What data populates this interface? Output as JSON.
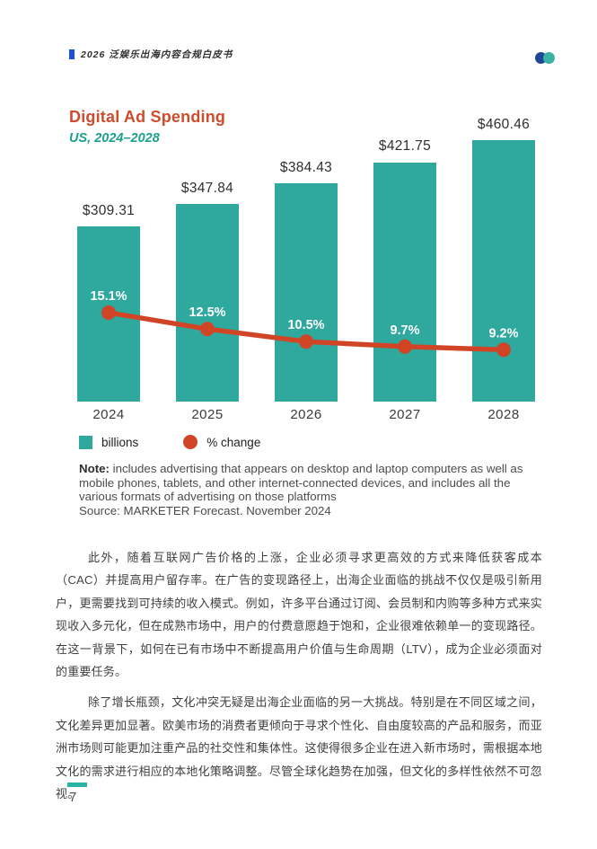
{
  "header": {
    "doc_title": "2026 泛娱乐出海内容合规白皮书"
  },
  "chart": {
    "title": "Digital Ad Spending",
    "subtitle": "US, 2024–2028",
    "legend": [
      {
        "label": "billions",
        "marker": "square",
        "color": "#2fa99e"
      },
      {
        "label": "% change",
        "marker": "circle",
        "color": "#d14527"
      }
    ],
    "note_label": "Note:",
    "note_body": " includes advertising that appears on desktop and laptop computers as well as mobile phones, tablets, and other internet-connected devices, and includes all the various formats of advertising on those platforms",
    "source": "Source: MARKETER Forecast. November 2024"
  },
  "chart_data": {
    "type": "bar",
    "combo": "bar+line",
    "title": "Digital Ad Spending",
    "subtitle": "US, 2024–2028",
    "categories": [
      "2024",
      "2025",
      "2026",
      "2027",
      "2028"
    ],
    "series": [
      {
        "name": "billions",
        "type": "bar",
        "values": [
          309.31,
          347.84,
          384.43,
          421.75,
          460.46
        ],
        "labels": [
          "$309.31",
          "$347.84",
          "$384.43",
          "$421.75",
          "$460.46"
        ],
        "color": "#2fa99e"
      },
      {
        "name": "% change",
        "type": "line",
        "values": [
          15.1,
          12.5,
          10.5,
          9.7,
          9.2
        ],
        "labels": [
          "15.1%",
          "12.5%",
          "10.5%",
          "9.7%",
          "9.2%"
        ],
        "color": "#d14527"
      }
    ],
    "xlabel": "",
    "ylabel": "",
    "value_unit": "US$ billions",
    "grid": false,
    "legend_position": "bottom-left"
  },
  "body": {
    "paragraphs": [
      "此外，随着互联网广告价格的上涨，企业必须寻求更高效的方式来降低获客成本（CAC）并提高用户留存率。在广告的变现路径上，出海企业面临的挑战不仅仅是吸引新用户，更需要找到可持续的收入模式。例如，许多平台通过订阅、会员制和内购等多种方式来实现收入多元化，但在成熟市场中，用户的付费意愿趋于饱和，企业很难依赖单一的变现路径。在这一背景下，如何在已有市场中不断提高用户价值与生命周期（LTV），成为企业必须面对的重要任务。",
      "除了增长瓶颈，文化冲突无疑是出海企业面临的另一大挑战。特别是在不同区域之间，文化差异更加显著。欧美市场的消费者更倾向于寻求个性化、自由度较高的产品和服务，而亚洲市场则可能更加注重产品的社交性和集体性。这使得很多企业在进入新市场时，需根据本地文化的需求进行相应的本地化策略调整。尽管全球化趋势在加强，但文化的多样性依然不可忽视。"
    ]
  },
  "footer": {
    "page_number": "7"
  },
  "colors": {
    "bar": "#2fa99e",
    "line": "#d14527",
    "title": "#cf4c2c",
    "subtitle": "#1ba18f",
    "header_accent": "#1b50d8",
    "logo_blue": "#1e4796",
    "logo_teal": "#38b2a3",
    "footer_accent": "#29b3a2"
  }
}
